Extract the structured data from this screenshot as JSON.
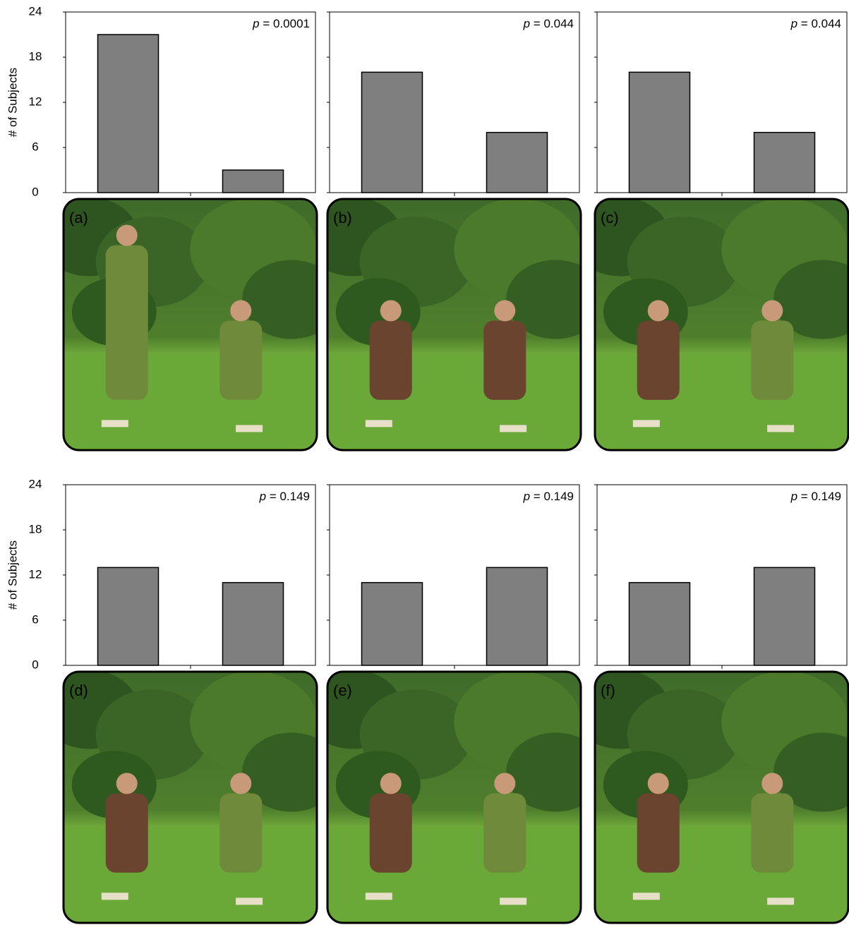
{
  "chart_data": [
    {
      "type": "bar",
      "panel_label": "(a)",
      "categories": [
        null,
        null
      ],
      "values": [
        21,
        3
      ],
      "color": "#7f7f7f",
      "ylim": [
        0,
        24
      ],
      "yticks": [
        0,
        6,
        12,
        18,
        24
      ],
      "ytick_labels_shown": true,
      "ylabel": "# of Subjects",
      "annotation": {
        "symbol": "p",
        "text": "= 0.0001"
      }
    },
    {
      "type": "bar",
      "panel_label": "(b)",
      "categories": [
        null,
        null
      ],
      "values": [
        16,
        8
      ],
      "color": "#7f7f7f",
      "ylim": [
        0,
        24
      ],
      "yticks": [
        0,
        6,
        12,
        18,
        24
      ],
      "ytick_labels_shown": false,
      "annotation": {
        "symbol": "p",
        "text": "= 0.044"
      }
    },
    {
      "type": "bar",
      "panel_label": "(c)",
      "categories": [
        null,
        null
      ],
      "values": [
        16,
        8
      ],
      "color": "#7f7f7f",
      "ylim": [
        0,
        24
      ],
      "yticks": [
        0,
        6,
        12,
        18,
        24
      ],
      "ytick_labels_shown": false,
      "annotation": {
        "symbol": "p",
        "text": "= 0.044"
      }
    },
    {
      "type": "bar",
      "panel_label": "(d)",
      "categories": [
        null,
        null
      ],
      "values": [
        13,
        11
      ],
      "color": "#7f7f7f",
      "ylim": [
        0,
        24
      ],
      "yticks": [
        0,
        6,
        12,
        18,
        24
      ],
      "ytick_labels_shown": true,
      "ylabel": "# of Subjects",
      "annotation": {
        "symbol": "p",
        "text": "= 0.149"
      }
    },
    {
      "type": "bar",
      "panel_label": "(e)",
      "categories": [
        null,
        null
      ],
      "values": [
        11,
        13
      ],
      "color": "#7f7f7f",
      "ylim": [
        0,
        24
      ],
      "yticks": [
        0,
        6,
        12,
        18,
        24
      ],
      "ytick_labels_shown": false,
      "annotation": {
        "symbol": "p",
        "text": "= 0.149"
      }
    },
    {
      "type": "bar",
      "panel_label": "(f)",
      "categories": [
        null,
        null
      ],
      "values": [
        11,
        13
      ],
      "color": "#7f7f7f",
      "ylim": [
        0,
        24
      ],
      "yticks": [
        0,
        6,
        12,
        18,
        24
      ],
      "ytick_labels_shown": false,
      "annotation": {
        "symbol": "p",
        "text": "= 0.149"
      }
    }
  ]
}
